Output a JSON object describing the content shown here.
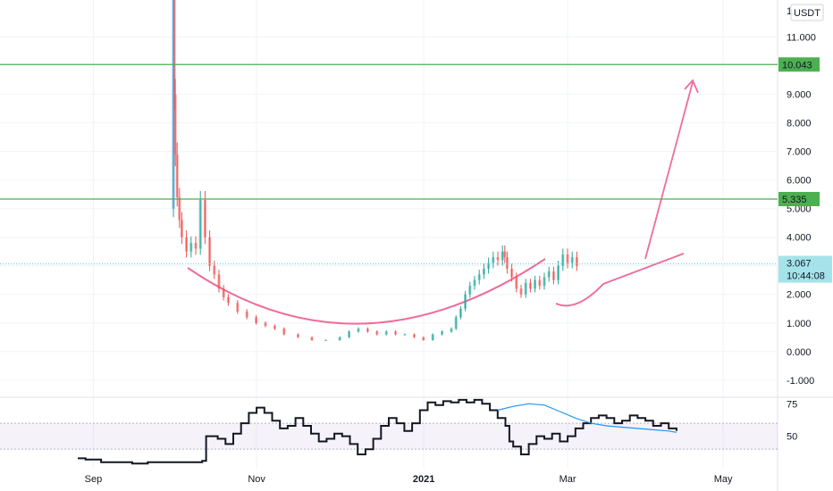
{
  "chart_data": {
    "type": "candlestick",
    "currency": "USDT",
    "price_axis": {
      "ticks": [
        {
          "value": 11,
          "label": "11.000"
        },
        {
          "value": 9,
          "label": "9.000"
        },
        {
          "value": 8,
          "label": "8.000"
        },
        {
          "value": 7,
          "label": "7.000"
        },
        {
          "value": 6,
          "label": "6.000"
        },
        {
          "value": 5,
          "label": "5.000"
        },
        {
          "value": 4,
          "label": "4.000"
        },
        {
          "value": 3,
          "label": "3.000"
        },
        {
          "value": 2,
          "label": "2.000"
        },
        {
          "value": 1,
          "label": "1.000"
        },
        {
          "value": 0,
          "label": "0.000"
        },
        {
          "value": -1,
          "label": "-1.000"
        }
      ],
      "top_partial_label": "1",
      "range": [
        -1.6,
        12.3
      ]
    },
    "time_axis": {
      "labels": [
        {
          "t": 0.12,
          "label": "Sep",
          "bold": false
        },
        {
          "t": 0.33,
          "label": "Nov",
          "bold": false
        },
        {
          "t": 0.545,
          "label": "2021",
          "bold": true
        },
        {
          "t": 0.73,
          "label": "Mar",
          "bold": false
        },
        {
          "t": 0.93,
          "label": "May",
          "bold": false
        }
      ],
      "range": [
        0,
        1
      ]
    },
    "horizontal_levels": [
      {
        "value": 10.043,
        "label": "10.043",
        "color": "#4caf50"
      },
      {
        "value": 5.335,
        "label": "5.335",
        "color": "#4caf50"
      }
    ],
    "last_price": {
      "value": 3.067,
      "label": "3.067",
      "countdown": "10:44:08",
      "color": "#a4e3ea"
    },
    "close_series": [
      [
        0.0,
        5.0
      ],
      [
        0.002,
        12.5
      ],
      [
        0.004,
        9.0
      ],
      [
        0.006,
        6.9
      ],
      [
        0.01,
        5.4
      ],
      [
        0.015,
        4.6
      ],
      [
        0.02,
        4.0
      ],
      [
        0.03,
        3.5
      ],
      [
        0.04,
        3.8
      ],
      [
        0.05,
        3.6
      ],
      [
        0.06,
        5.3
      ],
      [
        0.07,
        4.0
      ],
      [
        0.08,
        3.0
      ],
      [
        0.09,
        2.7
      ],
      [
        0.1,
        2.2
      ],
      [
        0.11,
        1.9
      ],
      [
        0.12,
        1.7
      ],
      [
        0.14,
        1.4
      ],
      [
        0.16,
        1.2
      ],
      [
        0.18,
        1.0
      ],
      [
        0.2,
        0.9
      ],
      [
        0.22,
        0.8
      ],
      [
        0.24,
        0.6
      ],
      [
        0.27,
        0.5
      ],
      [
        0.3,
        0.4
      ],
      [
        0.33,
        0.4
      ],
      [
        0.36,
        0.5
      ],
      [
        0.38,
        0.7
      ],
      [
        0.4,
        0.8
      ],
      [
        0.42,
        0.7
      ],
      [
        0.44,
        0.6
      ],
      [
        0.46,
        0.7
      ],
      [
        0.48,
        0.6
      ],
      [
        0.5,
        0.6
      ],
      [
        0.52,
        0.5
      ],
      [
        0.54,
        0.4
      ],
      [
        0.56,
        0.6
      ],
      [
        0.58,
        0.7
      ],
      [
        0.6,
        0.8
      ],
      [
        0.61,
        1.2
      ],
      [
        0.62,
        1.5
      ],
      [
        0.63,
        2.0
      ],
      [
        0.64,
        2.3
      ],
      [
        0.65,
        2.5
      ],
      [
        0.66,
        2.7
      ],
      [
        0.67,
        2.9
      ],
      [
        0.68,
        3.1
      ],
      [
        0.69,
        3.3
      ],
      [
        0.7,
        3.2
      ],
      [
        0.71,
        3.5
      ],
      [
        0.715,
        3.3
      ],
      [
        0.72,
        2.9
      ],
      [
        0.73,
        2.6
      ],
      [
        0.74,
        2.2
      ],
      [
        0.75,
        2.0
      ],
      [
        0.76,
        2.4
      ],
      [
        0.77,
        2.2
      ],
      [
        0.78,
        2.5
      ],
      [
        0.79,
        2.3
      ],
      [
        0.8,
        2.6
      ],
      [
        0.81,
        2.8
      ],
      [
        0.82,
        2.5
      ],
      [
        0.83,
        3.0
      ],
      [
        0.84,
        3.4
      ],
      [
        0.85,
        3.1
      ],
      [
        0.86,
        3.3
      ],
      [
        0.87,
        3.0
      ]
    ],
    "oscillator": {
      "ticks": [
        {
          "value": 75,
          "label": "75"
        },
        {
          "value": 50,
          "label": "50"
        }
      ],
      "band": [
        40,
        60
      ],
      "range": [
        25,
        80
      ],
      "values": [
        [
          0.1,
          33
        ],
        [
          0.11,
          32
        ],
        [
          0.13,
          30
        ],
        [
          0.15,
          30
        ],
        [
          0.17,
          29
        ],
        [
          0.19,
          30
        ],
        [
          0.21,
          30
        ],
        [
          0.23,
          30
        ],
        [
          0.25,
          30
        ],
        [
          0.26,
          31
        ],
        [
          0.265,
          50
        ],
        [
          0.28,
          48
        ],
        [
          0.29,
          44
        ],
        [
          0.3,
          52
        ],
        [
          0.31,
          60
        ],
        [
          0.32,
          68
        ],
        [
          0.33,
          72
        ],
        [
          0.34,
          68
        ],
        [
          0.35,
          62
        ],
        [
          0.36,
          56
        ],
        [
          0.37,
          58
        ],
        [
          0.38,
          64
        ],
        [
          0.39,
          58
        ],
        [
          0.4,
          52
        ],
        [
          0.41,
          46
        ],
        [
          0.42,
          48
        ],
        [
          0.43,
          52
        ],
        [
          0.44,
          50
        ],
        [
          0.45,
          44
        ],
        [
          0.46,
          36
        ],
        [
          0.47,
          40
        ],
        [
          0.48,
          48
        ],
        [
          0.49,
          58
        ],
        [
          0.5,
          64
        ],
        [
          0.51,
          60
        ],
        [
          0.52,
          54
        ],
        [
          0.53,
          60
        ],
        [
          0.54,
          70
        ],
        [
          0.55,
          76
        ],
        [
          0.56,
          74
        ],
        [
          0.57,
          77
        ],
        [
          0.58,
          76
        ],
        [
          0.59,
          78
        ],
        [
          0.6,
          76
        ],
        [
          0.61,
          78
        ],
        [
          0.62,
          75
        ],
        [
          0.63,
          70
        ],
        [
          0.64,
          64
        ],
        [
          0.65,
          58
        ],
        [
          0.655,
          46
        ],
        [
          0.66,
          42
        ],
        [
          0.67,
          36
        ],
        [
          0.68,
          44
        ],
        [
          0.69,
          50
        ],
        [
          0.7,
          48
        ],
        [
          0.71,
          52
        ],
        [
          0.72,
          46
        ],
        [
          0.73,
          50
        ],
        [
          0.74,
          56
        ],
        [
          0.75,
          60
        ],
        [
          0.76,
          64
        ],
        [
          0.77,
          66
        ],
        [
          0.78,
          64
        ],
        [
          0.79,
          60
        ],
        [
          0.8,
          62
        ],
        [
          0.81,
          66
        ],
        [
          0.82,
          64
        ],
        [
          0.83,
          62
        ],
        [
          0.84,
          58
        ],
        [
          0.85,
          60
        ],
        [
          0.86,
          56
        ],
        [
          0.87,
          54
        ]
      ],
      "signal": [
        [
          0.64,
          70
        ],
        [
          0.66,
          73
        ],
        [
          0.68,
          75
        ],
        [
          0.7,
          74
        ],
        [
          0.72,
          69
        ],
        [
          0.74,
          64
        ],
        [
          0.76,
          60
        ],
        [
          0.78,
          58
        ],
        [
          0.8,
          57
        ],
        [
          0.82,
          56
        ],
        [
          0.84,
          55
        ],
        [
          0.86,
          54
        ],
        [
          0.87,
          53
        ]
      ]
    }
  }
}
